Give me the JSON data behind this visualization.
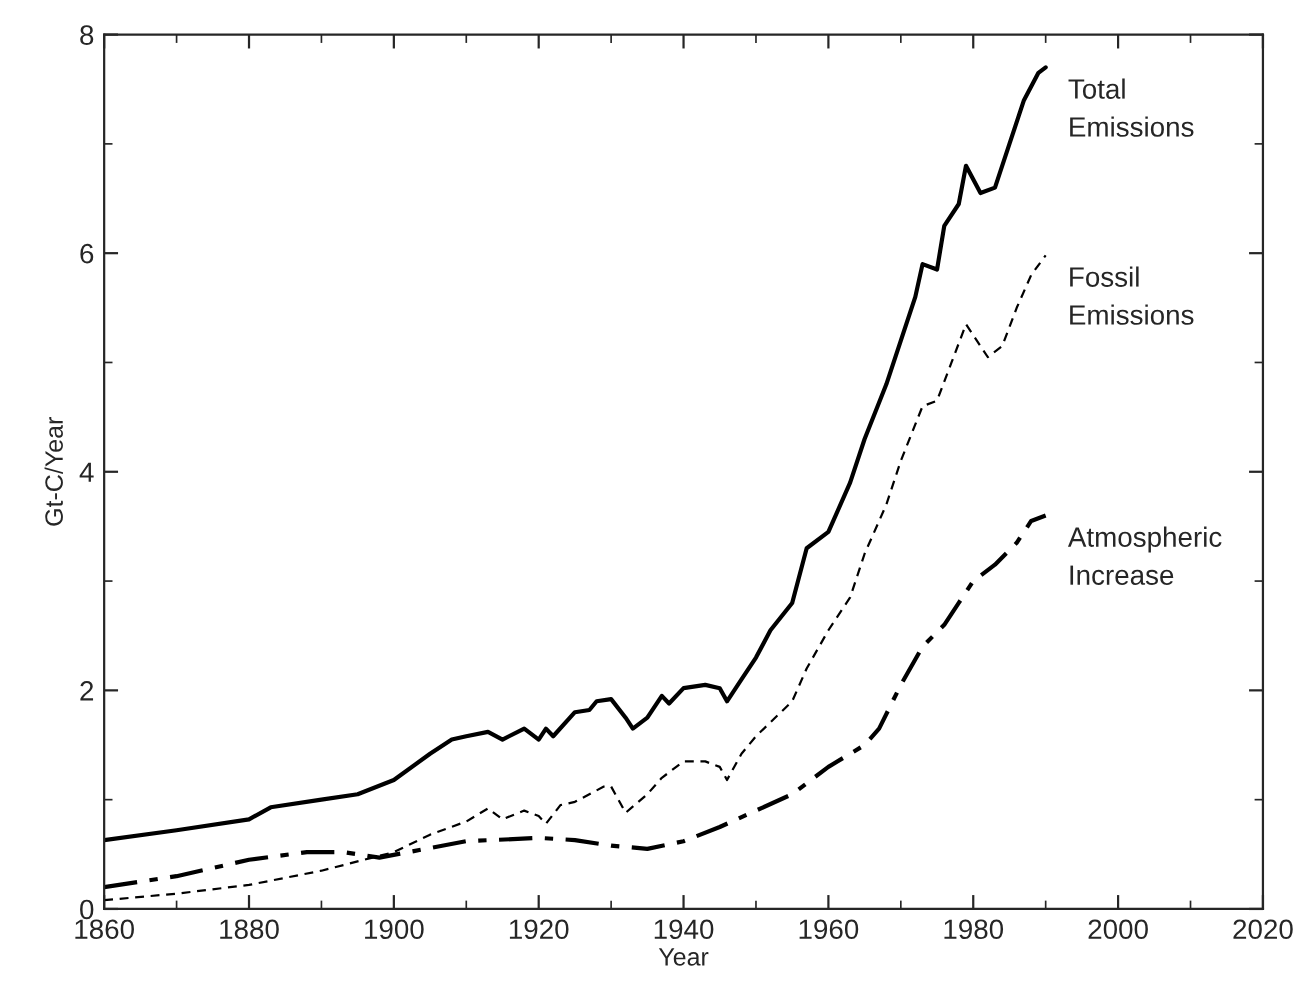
{
  "chart_data": {
    "type": "line",
    "xlabel": "Year",
    "ylabel": "Gt-C/Year",
    "xlim": [
      1860,
      2020
    ],
    "xticks": [
      1860,
      1880,
      1900,
      1920,
      1940,
      1960,
      1980,
      2000,
      2020
    ],
    "ylim": [
      0,
      8
    ],
    "yticks": [
      0,
      2,
      4,
      6,
      8
    ],
    "grid": false,
    "legend": false,
    "series": [
      {
        "name": "Total\nEmissions",
        "color": "#000000",
        "line_style": "solid",
        "x": [
          1860,
          1870,
          1880,
          1883,
          1890,
          1895,
          1900,
          1905,
          1908,
          1910,
          1913,
          1915,
          1918,
          1920,
          1921,
          1922,
          1925,
          1927,
          1928,
          1930,
          1932,
          1933,
          1935,
          1937,
          1938,
          1940,
          1943,
          1945,
          1946,
          1948,
          1950,
          1952,
          1955,
          1957,
          1960,
          1963,
          1965,
          1968,
          1970,
          1972,
          1973,
          1975,
          1976,
          1978,
          1979,
          1981,
          1983,
          1985,
          1987,
          1989,
          1990
        ],
        "values": [
          0.63,
          0.72,
          0.82,
          0.93,
          1.0,
          1.05,
          1.18,
          1.42,
          1.55,
          1.58,
          1.62,
          1.55,
          1.65,
          1.55,
          1.65,
          1.58,
          1.8,
          1.82,
          1.9,
          1.92,
          1.75,
          1.65,
          1.75,
          1.95,
          1.88,
          2.02,
          2.05,
          2.02,
          1.9,
          2.1,
          2.3,
          2.55,
          2.8,
          3.3,
          3.45,
          3.9,
          4.3,
          4.8,
          5.2,
          5.6,
          5.9,
          5.85,
          6.25,
          6.45,
          6.8,
          6.55,
          6.6,
          7.0,
          7.4,
          7.65,
          7.7
        ]
      },
      {
        "name": "Fossil\nEmissions",
        "color": "#000000",
        "line_style": "dashed",
        "x": [
          1860,
          1870,
          1880,
          1890,
          1900,
          1905,
          1910,
          1913,
          1915,
          1918,
          1920,
          1921,
          1923,
          1925,
          1929,
          1930,
          1932,
          1935,
          1937,
          1940,
          1943,
          1945,
          1946,
          1948,
          1950,
          1955,
          1957,
          1960,
          1963,
          1965,
          1968,
          1970,
          1973,
          1975,
          1977,
          1979,
          1980,
          1982,
          1984,
          1986,
          1988,
          1990
        ],
        "values": [
          0.08,
          0.14,
          0.22,
          0.35,
          0.52,
          0.68,
          0.8,
          0.92,
          0.82,
          0.9,
          0.85,
          0.78,
          0.95,
          0.98,
          1.12,
          1.12,
          0.88,
          1.05,
          1.2,
          1.35,
          1.35,
          1.3,
          1.18,
          1.42,
          1.58,
          1.9,
          2.2,
          2.55,
          2.85,
          3.25,
          3.7,
          4.1,
          4.6,
          4.65,
          5.0,
          5.35,
          5.25,
          5.05,
          5.15,
          5.5,
          5.8,
          5.98
        ]
      },
      {
        "name": "Atmospheric\nIncrease",
        "color": "#000000",
        "line_style": "dashdot",
        "x": [
          1860,
          1870,
          1880,
          1888,
          1893,
          1898,
          1902,
          1910,
          1920,
          1925,
          1930,
          1935,
          1940,
          1945,
          1950,
          1955,
          1960,
          1965,
          1967,
          1970,
          1973,
          1976,
          1978,
          1980,
          1983,
          1986,
          1988,
          1990
        ],
        "values": [
          0.2,
          0.3,
          0.45,
          0.52,
          0.52,
          0.47,
          0.52,
          0.62,
          0.65,
          0.63,
          0.58,
          0.55,
          0.62,
          0.75,
          0.9,
          1.05,
          1.3,
          1.5,
          1.65,
          2.05,
          2.4,
          2.6,
          2.8,
          3.0,
          3.15,
          3.35,
          3.55,
          3.6
        ]
      }
    ]
  }
}
